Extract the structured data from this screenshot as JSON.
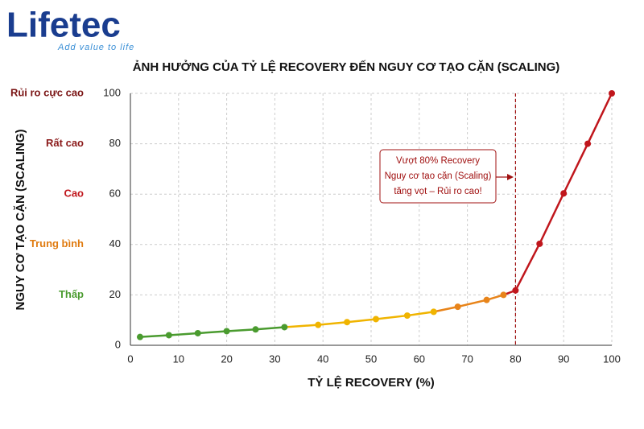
{
  "logo": {
    "name": "Lifetec",
    "slogan": "Add value to life"
  },
  "chart_data": {
    "type": "line",
    "title": "ẢNH HƯỞNG CỦA TỶ LỆ RECOVERY ĐẾN NGUY CƠ TẠO CẶN (SCALING)",
    "x_label": "TỶ LỆ RECOVERY (%)",
    "y_label": "NGUY CƠ TẠO CẶN (SCALING)",
    "xlim": [
      0,
      100
    ],
    "xticks": [
      0,
      10,
      20,
      30,
      40,
      50,
      60,
      70,
      80,
      90,
      100
    ],
    "ylim": [
      0,
      100
    ],
    "yticks": [
      0,
      20,
      40,
      60,
      80,
      100
    ],
    "grid": true,
    "series": [
      {
        "color": "#4a9b2f",
        "x": [
          2,
          8,
          14,
          20,
          26,
          32
        ],
        "values": [
          3.3,
          4,
          4.8,
          5.6,
          6.3,
          7.2
        ]
      },
      {
        "color": "#f0b400",
        "x": [
          39,
          45,
          51,
          57.5,
          63
        ],
        "values": [
          8.1,
          9.2,
          10.4,
          11.8,
          13.3
        ]
      },
      {
        "color": "#e8841a",
        "x": [
          68,
          74,
          77.5
        ],
        "values": [
          15.3,
          18,
          20
        ]
      },
      {
        "color": "#c0161c",
        "x": [
          80,
          85,
          90,
          95,
          100
        ],
        "values": [
          21.8,
          40.3,
          60.3,
          80,
          100
        ]
      }
    ],
    "risk_levels": [
      {
        "value": 100,
        "label": "Rủi ro cực cao",
        "color": "#7a1414"
      },
      {
        "value": 80,
        "label": "Rất cao",
        "color": "#8b1a1a"
      },
      {
        "value": 60,
        "label": "Cao",
        "color": "#c0161c"
      },
      {
        "value": 40,
        "label": "Trung bình",
        "color": "#e07b10"
      },
      {
        "value": 20,
        "label": "Thấp",
        "color": "#4a9b2f"
      }
    ],
    "threshold": {
      "x": 80,
      "color": "#a01010",
      "text": [
        "Vượt 80% Recovery",
        "Nguy cơ tạo cặn (Scaling)",
        "tăng vọt – Rủi ro cao!"
      ]
    }
  }
}
